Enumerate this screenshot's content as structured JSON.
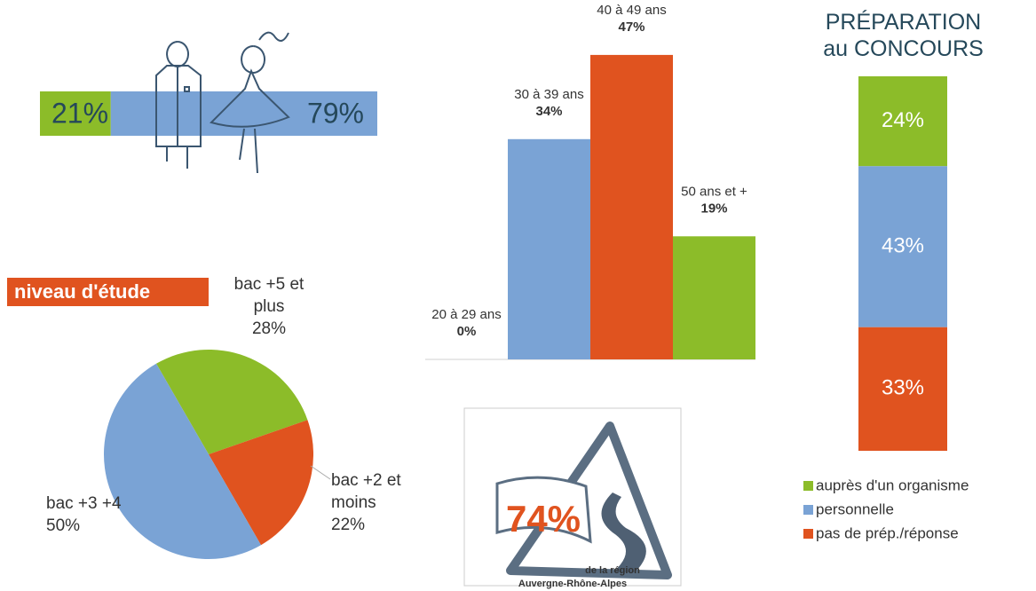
{
  "chart_data": [
    {
      "type": "split-bar",
      "values": [
        21,
        79
      ],
      "value_labels": [
        "21%",
        "79%"
      ],
      "colors": [
        "#8cbc29",
        "#7aa3d5"
      ]
    },
    {
      "type": "pie",
      "title": "niveau d'étude",
      "categories": [
        "bac +5 et plus",
        "bac +2 et moins",
        "bac +3 +4"
      ],
      "values": [
        28,
        22,
        50
      ],
      "value_labels": [
        "28%",
        "22%",
        "50%"
      ],
      "colors": [
        "#8cbc29",
        "#e0531f",
        "#7aa3d5"
      ]
    },
    {
      "type": "bar",
      "categories": [
        "20 à 29 ans",
        "30 à 39 ans",
        "40 à 49 ans",
        "50 ans et +"
      ],
      "values": [
        0,
        34,
        47,
        19
      ],
      "value_labels": [
        "0%",
        "34%",
        "47%",
        "19%"
      ],
      "colors": [
        "#7aa3d5",
        "#7aa3d5",
        "#e0531f",
        "#8cbc29"
      ]
    },
    {
      "type": "stacked-bar",
      "title": "PRÉPARATION au CONCOURS",
      "legend": "bottom",
      "series": [
        {
          "name": "auprès d'un organisme",
          "color": "#8cbc29",
          "values": [
            24
          ],
          "value_labels": [
            "24%"
          ]
        },
        {
          "name": "personnelle",
          "color": "#7aa3d5",
          "values": [
            43
          ],
          "value_labels": [
            "43%"
          ]
        },
        {
          "name": "pas de prép./réponse",
          "color": "#e0531f",
          "values": [
            33
          ],
          "value_labels": [
            "33%"
          ]
        }
      ]
    }
  ],
  "badge": {
    "text": "74%",
    "caption": "de la région",
    "region": "Auvergne-Rhône-Alpes"
  }
}
